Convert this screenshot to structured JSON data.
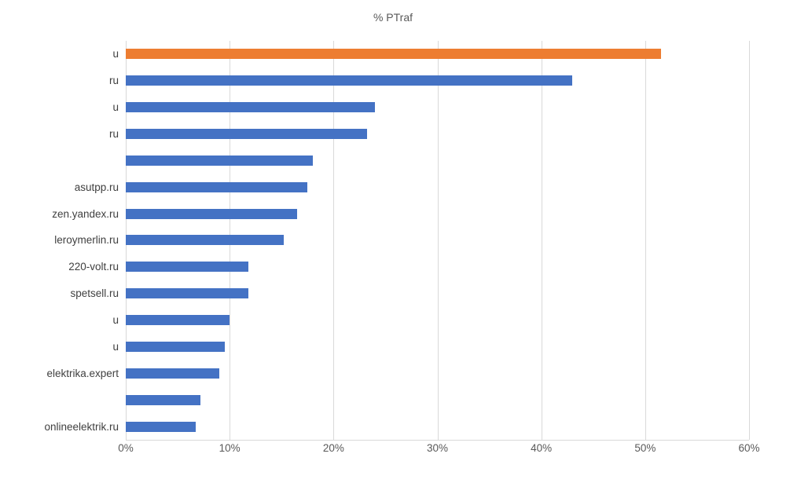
{
  "chart_data": {
    "type": "bar",
    "orientation": "horizontal",
    "title": "% PTraf",
    "categories": [
      "u",
      "ru",
      "u",
      "ru",
      "",
      "asutpp.ru",
      "zen.yandex.ru",
      "leroymerlin.ru",
      "220-volt.ru",
      "spetsell.ru",
      "u",
      "u",
      "elektrika.expert",
      "",
      "onlineelektrik.ru"
    ],
    "values": [
      51.5,
      43,
      24,
      23.2,
      18,
      17.5,
      16.5,
      15.2,
      11.8,
      11.8,
      10,
      9.5,
      9,
      7.2,
      6.7
    ],
    "bar_colors": [
      "#ED7D31",
      "#4472C4",
      "#4472C4",
      "#4472C4",
      "#4472C4",
      "#4472C4",
      "#4472C4",
      "#4472C4",
      "#4472C4",
      "#4472C4",
      "#4472C4",
      "#4472C4",
      "#4472C4",
      "#4472C4",
      "#4472C4"
    ],
    "xlim": [
      0,
      60
    ],
    "x_ticks": [
      "0%",
      "10%",
      "20%",
      "30%",
      "40%",
      "50%",
      "60%"
    ],
    "x_tick_values": [
      0,
      10,
      20,
      30,
      40,
      50,
      60
    ],
    "grid": true,
    "legend": "none",
    "gridline_color": "#D9D9D9",
    "axis_text_color": "#595959",
    "label_text_color": "#404040"
  }
}
